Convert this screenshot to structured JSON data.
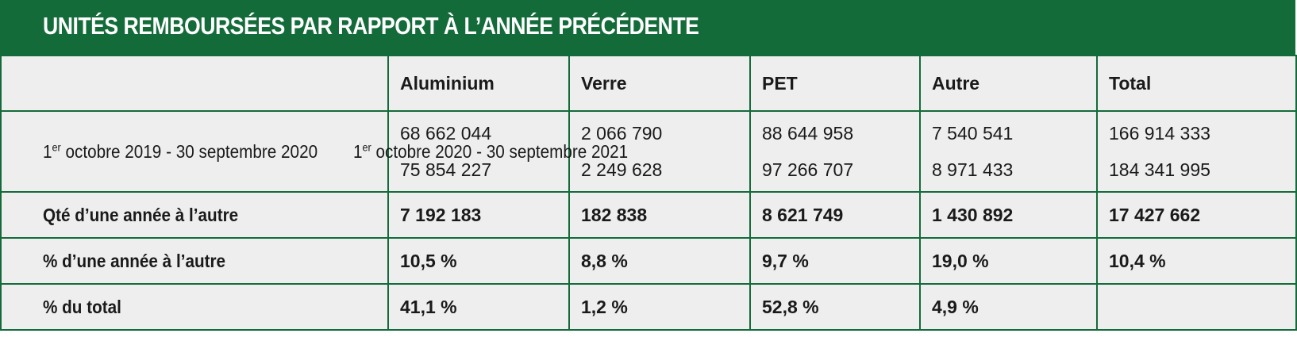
{
  "title": "UNITÉS REMBOURSÉES PAR RAPPORT À L’ANNÉE PRÉCÉDENTE",
  "colors": {
    "header_green": "#146b3a",
    "row_background": "#eeeeee"
  },
  "columns": [
    "",
    "Aluminium",
    "Verre",
    "PET",
    "Autre",
    "Total"
  ],
  "periods": [
    {
      "prefix": "1",
      "sup": "er",
      "rest": " octobre 2019 - 30 septembre 2020"
    },
    {
      "prefix": "1",
      "sup": "er",
      "rest": " octobre 2020 - 30 septembre  2021"
    }
  ],
  "period_values": [
    [
      "68 662 044",
      "2 066 790",
      "88 644 958",
      "7 540 541",
      "166 914 333"
    ],
    [
      "75 854 227",
      "2 249 628",
      "97 266 707",
      "8 971 433",
      "184 341 995"
    ]
  ],
  "rows": [
    {
      "label": "Qté d’une année à l’autre",
      "values": [
        "7 192 183",
        "182 838",
        "8 621 749",
        "1 430 892",
        "17 427 662"
      ]
    },
    {
      "label": "% d’une année à l’autre",
      "values": [
        "10,5 %",
        "8,8 %",
        "9,7 %",
        "19,0 %",
        "10,4 %"
      ]
    },
    {
      "label": "% du total",
      "values": [
        "41,1 %",
        "1,2 %",
        "52,8 %",
        "4,9 %",
        ""
      ]
    }
  ]
}
